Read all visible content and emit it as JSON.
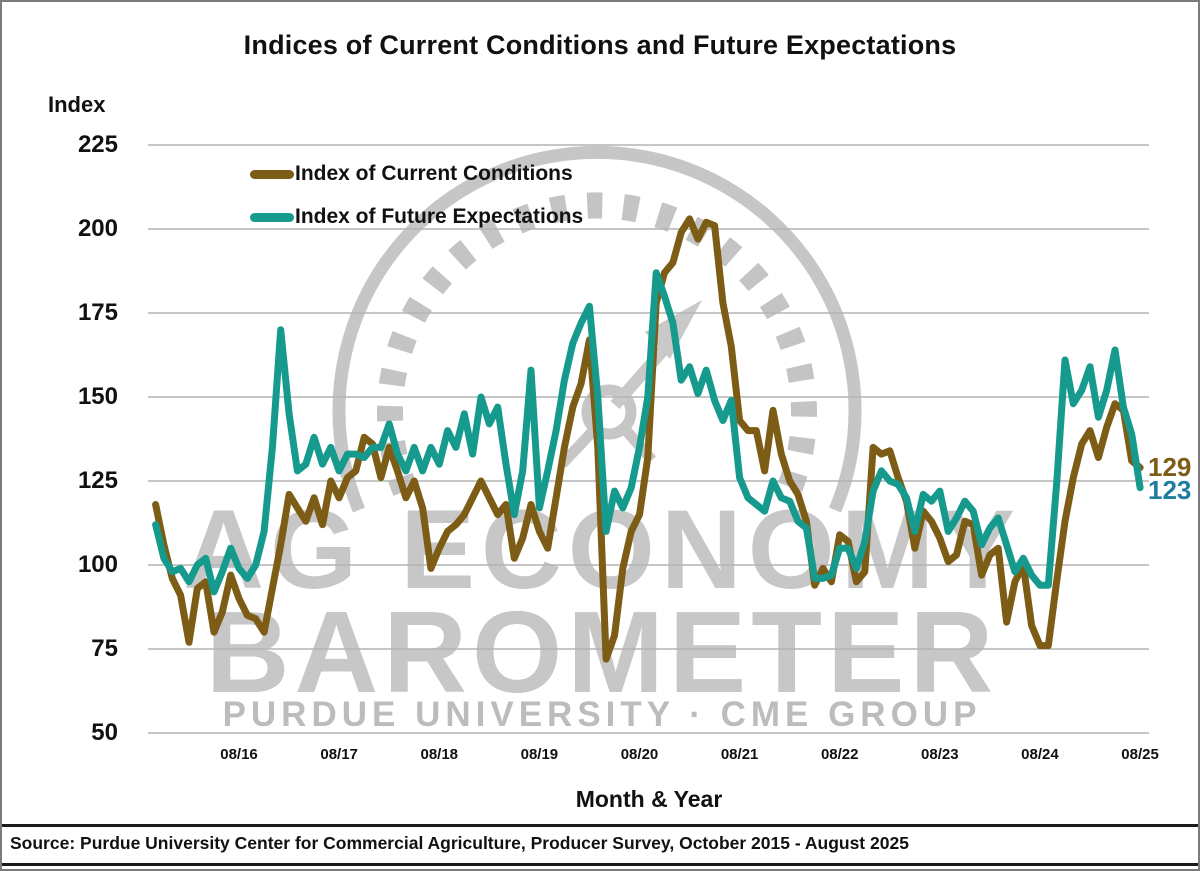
{
  "title": "Indices of Current Conditions and Future Expectations",
  "y_axis": {
    "label": "Index"
  },
  "x_axis": {
    "label": "Month & Year"
  },
  "legend": [
    {
      "label": "Index of Current Conditions",
      "color": "#7d5c15"
    },
    {
      "label": "Index of Future Expectations",
      "color": "#169a8d"
    }
  ],
  "end_labels": [
    {
      "text": "129",
      "color": "#7d5c15"
    },
    {
      "text": "123",
      "color": "#1d7e9f"
    }
  ],
  "watermark": {
    "line1": "AG ECONOMY",
    "line2": "BAROMETER",
    "line3": "PURDUE UNIVERSITY  ·  CME GROUP"
  },
  "source": "Source: Purdue University Center for Commercial Agriculture, Producer Survey, October 2015 - August 2025",
  "chart_data": {
    "type": "line",
    "title": "Indices of Current Conditions and Future Expectations",
    "xlabel": "Month & Year",
    "ylabel": "Index",
    "ylim": [
      50,
      225
    ],
    "yticks": [
      225,
      200,
      175,
      150,
      125,
      100,
      75,
      50
    ],
    "x_tick_labels": [
      "08/16",
      "08/17",
      "08/18",
      "08/19",
      "08/20",
      "08/21",
      "08/22",
      "08/23",
      "08/24",
      "08/25"
    ],
    "x_start": "2015-10",
    "x_end": "2025-08",
    "frequency": "monthly",
    "grid": true,
    "legend_position": "top-left-inside",
    "series": [
      {
        "name": "Index of Current Conditions",
        "color": "#7d5c15",
        "last_value_label": "129",
        "values": [
          118,
          106,
          96,
          91,
          77,
          93,
          95,
          80,
          86,
          97,
          90,
          85,
          84,
          80,
          93,
          106,
          121,
          117,
          113,
          120,
          112,
          125,
          120,
          126,
          128,
          138,
          136,
          126,
          135,
          128,
          120,
          125,
          117,
          99,
          105,
          110,
          112,
          115,
          120,
          125,
          120,
          115,
          118,
          102,
          108,
          118,
          110,
          105,
          120,
          135,
          147,
          154,
          167,
          135,
          72,
          79,
          99,
          110,
          115,
          132,
          178,
          187,
          190,
          199,
          203,
          197,
          202,
          201,
          178,
          165,
          143,
          140,
          140,
          128,
          146,
          133,
          125,
          121,
          113,
          94,
          99,
          95,
          109,
          107,
          95,
          98,
          135,
          133,
          134,
          126,
          119,
          105,
          116,
          113,
          108,
          101,
          103,
          113,
          112,
          97,
          103,
          105,
          83,
          95,
          100,
          82,
          76,
          76,
          95,
          113,
          126,
          136,
          140,
          132,
          141,
          148,
          146,
          131,
          129
        ]
      },
      {
        "name": "Index of Future Expectations",
        "color": "#169a8d",
        "last_value_label": "123",
        "values": [
          112,
          102,
          98,
          99,
          95,
          100,
          102,
          92,
          98,
          105,
          99,
          96,
          100,
          110,
          135,
          170,
          145,
          128,
          130,
          138,
          130,
          135,
          128,
          133,
          133,
          132,
          135,
          135,
          142,
          133,
          128,
          135,
          128,
          135,
          130,
          140,
          135,
          145,
          133,
          150,
          142,
          147,
          130,
          115,
          128,
          158,
          117,
          128,
          140,
          155,
          166,
          172,
          177,
          150,
          110,
          122,
          117,
          123,
          135,
          150,
          187,
          180,
          172,
          155,
          159,
          151,
          158,
          149,
          143,
          149,
          126,
          120,
          118,
          116,
          125,
          120,
          119,
          113,
          111,
          96,
          96,
          97,
          105,
          105,
          99,
          107,
          122,
          128,
          125,
          124,
          120,
          110,
          121,
          119,
          122,
          110,
          114,
          119,
          116,
          106,
          111,
          114,
          106,
          98,
          102,
          97,
          94,
          94,
          124,
          161,
          148,
          152,
          159,
          144,
          152,
          164,
          147,
          139,
          123
        ]
      }
    ]
  }
}
